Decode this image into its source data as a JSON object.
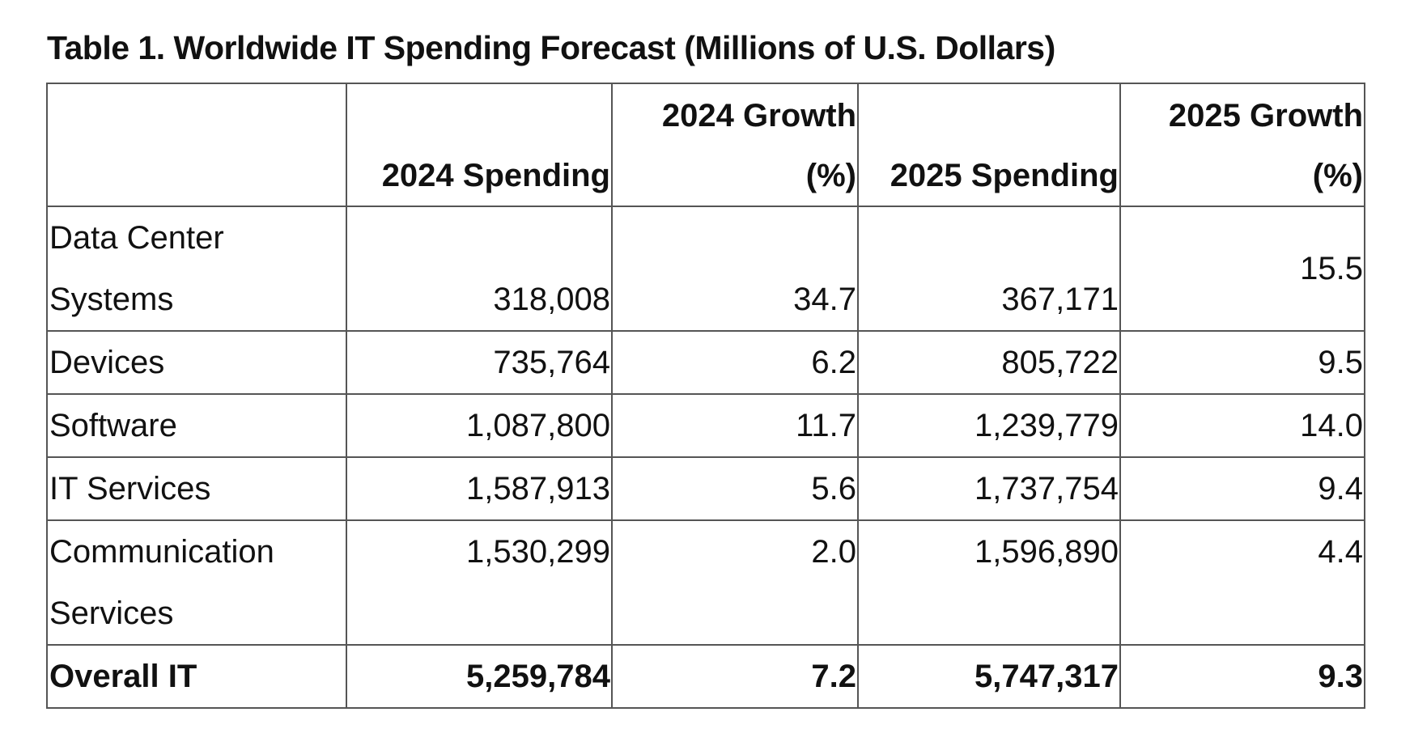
{
  "chart_data": {
    "type": "table",
    "title": "Table 1. Worldwide IT Spending Forecast (Millions of U.S. Dollars)",
    "columns": [
      "",
      "2024 Spending",
      "2024 Growth (%)",
      "2025 Spending",
      "2025 Growth (%)"
    ],
    "rows": [
      {
        "label": "Data Center Systems",
        "spend_2024": "318,008",
        "growth_2024": "34.7",
        "spend_2025": "367,171",
        "growth_2025": "15.5"
      },
      {
        "label": "Devices",
        "spend_2024": "735,764",
        "growth_2024": "6.2",
        "spend_2025": "805,722",
        "growth_2025": "9.5"
      },
      {
        "label": "Software",
        "spend_2024": "1,087,800",
        "growth_2024": "11.7",
        "spend_2025": "1,239,779",
        "growth_2025": "14.0"
      },
      {
        "label": "IT Services",
        "spend_2024": "1,587,913",
        "growth_2024": "5.6",
        "spend_2025": "1,737,754",
        "growth_2025": "9.4"
      },
      {
        "label": "Communication Services",
        "spend_2024": "1,530,299",
        "growth_2024": "2.0",
        "spend_2025": "1,596,890",
        "growth_2025": "4.4"
      },
      {
        "label": "Overall IT",
        "spend_2024": "5,259,784",
        "growth_2024": "7.2",
        "spend_2025": "5,747,317",
        "growth_2025": "9.3"
      }
    ]
  }
}
